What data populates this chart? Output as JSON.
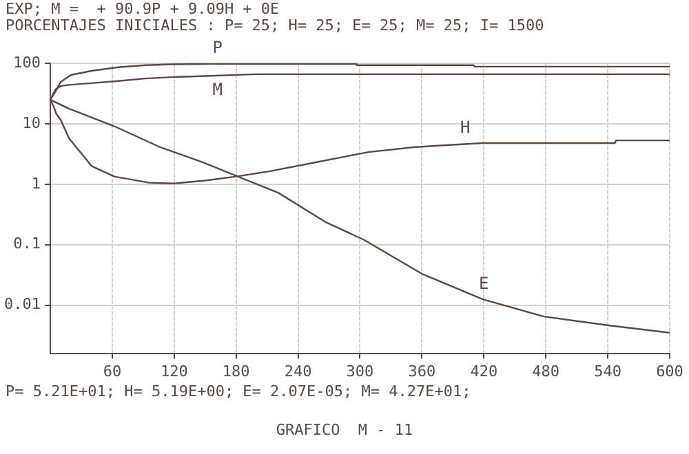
{
  "chart_data": {
    "type": "line",
    "title": "EXP; M =  + 90.9P + 9.09H + 0E",
    "subtitle": "PORCENTAJES INICIALES : P= 25; H= 25; E= 25; M= 25; I= 1500",
    "annotations": [
      "P= 5.21E+01; H= 5.19E+00; E= 2.07E-05; M= 4.27E+01;",
      "GRAFICO  M - 11"
    ],
    "log": "y",
    "grid": true,
    "legend": false,
    "marker": "none",
    "line_style": "solid",
    "xlim": [
      0,
      600
    ],
    "xticks": [
      60,
      120,
      180,
      240,
      300,
      360,
      420,
      480,
      540,
      600
    ],
    "ylim": [
      0.0016,
      100
    ],
    "yticks": [
      100,
      10,
      1,
      0.1,
      0.01
    ],
    "series": [
      {
        "name": "P",
        "color": "#5a4a44",
        "x": [
          0,
          5,
          10,
          20,
          40,
          66,
          92,
          118,
          160,
          296,
          297,
          410,
          411,
          600
        ],
        "values": [
          25,
          34,
          49,
          64,
          75,
          86,
          93,
          96,
          98,
          98,
          93,
          93,
          88,
          88
        ]
      },
      {
        "name": "M",
        "color": "#5a4a44",
        "x": [
          0,
          5,
          10,
          18,
          40,
          66,
          92,
          118,
          160,
          200,
          600
        ],
        "values": [
          25,
          37,
          42,
          44,
          47,
          51,
          56,
          59,
          62.5,
          66,
          66
        ]
      },
      {
        "name": "H",
        "color": "#5a4a44",
        "x": [
          0,
          3,
          6,
          10,
          18,
          40,
          62,
          96,
          120,
          150,
          180,
          213,
          257,
          308,
          352,
          381,
          419,
          547,
          548,
          600
        ],
        "values": [
          25,
          19.8,
          14.4,
          11.7,
          5.8,
          2,
          1.34,
          1.06,
          1.03,
          1.15,
          1.34,
          1.64,
          2.3,
          3.4,
          4.1,
          4.4,
          4.8,
          4.8,
          5.3,
          5.3
        ]
      },
      {
        "name": "E",
        "color": "#5a4a44",
        "x": [
          0,
          18,
          62,
          105,
          148,
          180,
          221,
          266,
          304,
          360,
          419,
          478,
          542,
          600
        ],
        "values": [
          25,
          17.8,
          9.1,
          4.2,
          2.3,
          1.38,
          0.72,
          0.24,
          0.12,
          0.033,
          0.0125,
          0.0065,
          0.0046,
          0.0035
        ]
      }
    ]
  }
}
